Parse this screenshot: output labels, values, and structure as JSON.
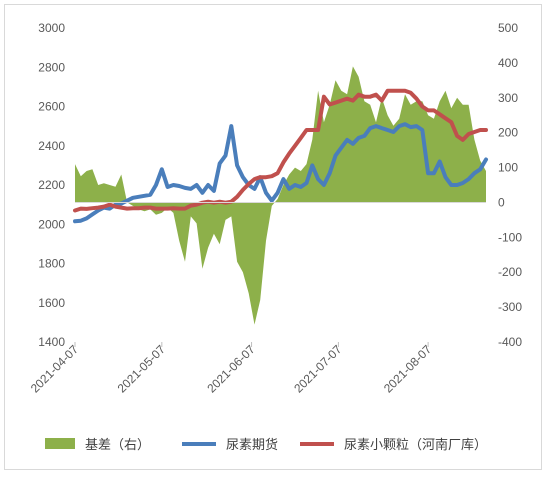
{
  "chart_data": {
    "type": "line",
    "title": "",
    "dates": [
      "2021-04-07",
      "2021-04-09",
      "2021-04-11",
      "2021-04-13",
      "2021-04-15",
      "2021-04-17",
      "2021-04-19",
      "2021-04-21",
      "2021-04-23",
      "2021-04-25",
      "2021-04-27",
      "2021-04-29",
      "2021-05-01",
      "2021-05-03",
      "2021-05-05",
      "2021-05-07",
      "2021-05-09",
      "2021-05-11",
      "2021-05-13",
      "2021-05-15",
      "2021-05-17",
      "2021-05-19",
      "2021-05-21",
      "2021-05-23",
      "2021-05-25",
      "2021-05-27",
      "2021-05-29",
      "2021-05-31",
      "2021-06-02",
      "2021-06-04",
      "2021-06-06",
      "2021-06-08",
      "2021-06-10",
      "2021-06-12",
      "2021-06-14",
      "2021-06-16",
      "2021-06-18",
      "2021-06-20",
      "2021-06-22",
      "2021-06-24",
      "2021-06-26",
      "2021-06-28",
      "2021-06-30",
      "2021-07-02",
      "2021-07-04",
      "2021-07-06",
      "2021-07-08",
      "2021-07-10",
      "2021-07-12",
      "2021-07-14",
      "2021-07-16",
      "2021-07-18",
      "2021-07-20",
      "2021-07-22",
      "2021-07-24",
      "2021-07-26",
      "2021-07-28",
      "2021-07-30",
      "2021-08-01",
      "2021-08-03",
      "2021-08-05",
      "2021-08-07",
      "2021-08-09",
      "2021-08-11",
      "2021-08-13",
      "2021-08-15",
      "2021-08-17",
      "2021-08-19",
      "2021-08-21",
      "2021-08-23",
      "2021-08-25",
      "2021-08-27"
    ],
    "xticks": [
      "2021-04-07",
      "2021-05-07",
      "2021-06-07",
      "2021-07-07",
      "2021-08-07"
    ],
    "y_left": {
      "min": 1400,
      "max": 3000,
      "ticks": [
        1400,
        1600,
        1800,
        2000,
        2200,
        2400,
        2600,
        2800,
        3000
      ]
    },
    "y_right": {
      "min": -400,
      "max": 500,
      "ticks": [
        -400,
        -300,
        -200,
        -100,
        0,
        100,
        200,
        300,
        400,
        500
      ]
    },
    "series": [
      {
        "name": "基差（右）",
        "type": "area",
        "axis": "right",
        "color": "#8db04a",
        "values": [
          110,
          75,
          90,
          95,
          50,
          55,
          50,
          45,
          80,
          0,
          -10,
          -20,
          -25,
          -20,
          -35,
          -30,
          -15,
          -30,
          -110,
          -170,
          -40,
          -60,
          -190,
          -130,
          -90,
          -120,
          -50,
          -40,
          -170,
          -200,
          -260,
          -350,
          -280,
          -110,
          -10,
          10,
          50,
          80,
          100,
          90,
          110,
          180,
          320,
          230,
          280,
          350,
          320,
          310,
          390,
          360,
          290,
          280,
          230,
          300,
          250,
          220,
          240,
          310,
          280,
          290,
          290,
          250,
          240,
          290,
          320,
          270,
          300,
          280,
          280,
          180,
          120,
          90
        ],
        "stroke_width": 0
      },
      {
        "name": "尿素期货",
        "type": "line",
        "axis": "left",
        "color": "#4a7ebb",
        "values": [
          2015,
          2018,
          2030,
          2050,
          2070,
          2085,
          2080,
          2100,
          2105,
          2120,
          2135,
          2140,
          2145,
          2150,
          2200,
          2280,
          2190,
          2200,
          2195,
          2185,
          2180,
          2200,
          2160,
          2200,
          2170,
          2310,
          2350,
          2500,
          2300,
          2240,
          2200,
          2180,
          2240,
          2160,
          2120,
          2160,
          2230,
          2180,
          2200,
          2190,
          2210,
          2300,
          2230,
          2200,
          2260,
          2350,
          2390,
          2430,
          2410,
          2440,
          2450,
          2490,
          2500,
          2490,
          2480,
          2470,
          2500,
          2510,
          2495,
          2500,
          2480,
          2260,
          2260,
          2320,
          2240,
          2200,
          2200,
          2210,
          2230,
          2260,
          2280,
          2330
        ],
        "stroke_width": 4
      },
      {
        "name": "尿素小颗粒（河南厂库）",
        "type": "line",
        "axis": "left",
        "color": "#c0504d",
        "values": [
          2070,
          2080,
          2078,
          2082,
          2085,
          2090,
          2100,
          2090,
          2085,
          2080,
          2082,
          2082,
          2085,
          2085,
          2080,
          2080,
          2080,
          2082,
          2080,
          2080,
          2095,
          2100,
          2110,
          2115,
          2110,
          2115,
          2110,
          2115,
          2140,
          2175,
          2205,
          2230,
          2240,
          2240,
          2245,
          2260,
          2315,
          2360,
          2400,
          2440,
          2480,
          2480,
          2480,
          2650,
          2610,
          2620,
          2630,
          2640,
          2630,
          2660,
          2650,
          2650,
          2660,
          2630,
          2680,
          2680,
          2680,
          2680,
          2670,
          2640,
          2600,
          2580,
          2580,
          2560,
          2540,
          2520,
          2450,
          2430,
          2460,
          2470,
          2480,
          2480
        ],
        "stroke_width": 4
      }
    ],
    "legend_position": "bottom",
    "grid": false
  }
}
